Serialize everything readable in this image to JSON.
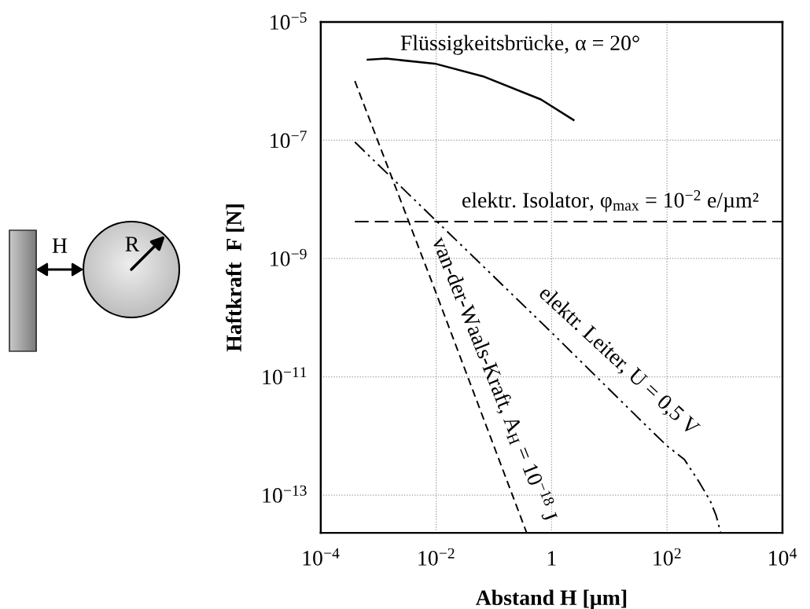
{
  "chart_data": {
    "type": "line",
    "xlabel": "Abstand H [µm]",
    "ylabel": "Haftkraft  F [N]",
    "log": "xy",
    "grid": true,
    "legend": false,
    "xlim": [
      0.0001,
      10000
    ],
    "ylim": [
      2.3e-14,
      1e-05
    ],
    "xticks": [
      {
        "value": 0.0001,
        "label": "10$^{−4}$"
      },
      {
        "value": 0.01,
        "label": "10$^{−2}$"
      },
      {
        "value": 1,
        "label": "1"
      },
      {
        "value": 100,
        "label": "10$^{2}$"
      },
      {
        "value": 10000,
        "label": "10$^{4}$"
      }
    ],
    "yticks": [
      {
        "value": 1e-13,
        "label": "10$^{−13}$"
      },
      {
        "value": 1e-11,
        "label": "10$^{−11}$"
      },
      {
        "value": 1e-09,
        "label": "10$^{−9}$"
      },
      {
        "value": 1e-07,
        "label": "10$^{−7}$"
      },
      {
        "value": 1e-05,
        "label": "10$^{−5}$"
      }
    ],
    "series": [
      {
        "name": "Flüssigkeitsbrücke, α = 20°",
        "color": "#000000",
        "line_style": "solid",
        "x": [
          0.00065,
          0.00135,
          0.01,
          0.065,
          0.65,
          2.4
        ],
        "values": [
          2.3e-06,
          2.4e-06,
          1.95e-06,
          1.2e-06,
          4.9e-07,
          2.2e-07
        ]
      },
      {
        "name": "elektr. Isolator, φ$_{max}$ = 10$^{−2}$ e/µm²",
        "color": "#000000",
        "line_style": "dashed",
        "x": [
          0.00039,
          10000
        ],
        "values": [
          4.2e-09,
          4.2e-09
        ]
      },
      {
        "name": "van-der-Waals-Kraft, A$_{H}$ = 10$^{−18}$ J",
        "color": "#000000",
        "line_style": "dashed",
        "x": [
          0.00039,
          0.0087,
          0.115,
          0.37
        ],
        "values": [
          1e-06,
          3.7e-10,
          4.7e-13,
          2.3e-14
        ]
      },
      {
        "name": "elektr. Leiter, U = 0,5 V",
        "color": "#000000",
        "line_style": "dashdotdot",
        "x": [
          0.00039,
          1,
          32,
          100,
          200,
          355,
          560,
          710,
          850
        ],
        "values": [
          9.3e-08,
          5.6e-11,
          2e-12,
          6.8e-13,
          4e-13,
          1.7e-13,
          8e-14,
          4.5e-14,
          2.3e-14
        ]
      }
    ],
    "annotations": [
      "H",
      "R"
    ]
  }
}
